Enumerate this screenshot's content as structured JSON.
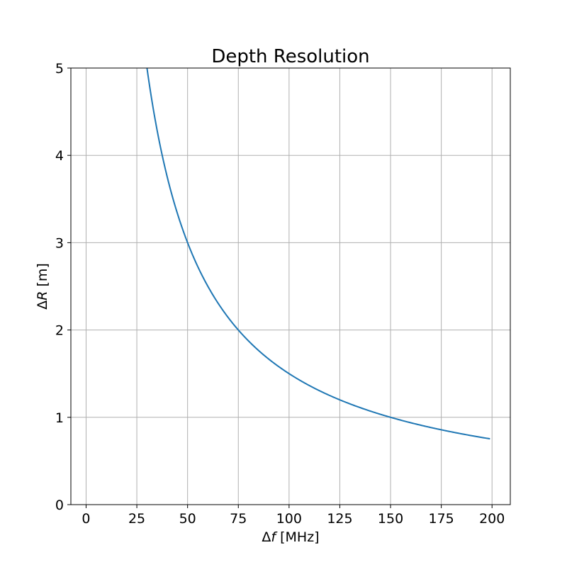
{
  "chart_data": {
    "type": "line",
    "title": "Depth Resolution",
    "xlabel": {
      "prefix": "Δ",
      "var": "f",
      "suffix": " [MHz]"
    },
    "ylabel": {
      "prefix": "Δ",
      "var": "R",
      "suffix": " [m]"
    },
    "xlim": [
      -7.5,
      209
    ],
    "ylim": [
      0,
      5
    ],
    "xticks": [
      0,
      25,
      50,
      75,
      100,
      125,
      150,
      175,
      200
    ],
    "yticks": [
      0,
      1,
      2,
      3,
      4,
      5
    ],
    "grid": true,
    "series": [
      {
        "color": "#1f77b4",
        "formula": "150 / x",
        "x_range": [
          30,
          199
        ]
      }
    ]
  }
}
